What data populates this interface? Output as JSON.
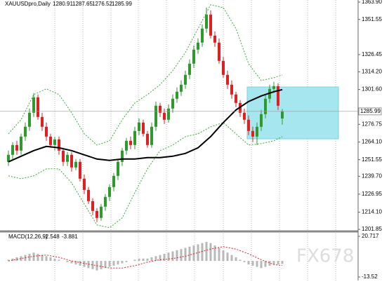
{
  "chart_data": {
    "type": "candlestick",
    "symbol": "XAUUSDpro,Daily",
    "watermark": "FX678",
    "up_color": "#2e9a2e",
    "down_color": "#e02020",
    "ylim": [
      1200.4,
      1365.4
    ],
    "yticks": [
      {
        "value": 1363.9,
        "label": "1363.90"
      },
      1351.55,
      1326.45,
      {
        "value": 1314.2,
        "label": "1314.20"
      },
      {
        "value": 1301.6,
        "label": "1301.60"
      },
      1276.75,
      {
        "value": 1264.1,
        "label": "1264.10"
      },
      1251.55,
      {
        "value": 1239.7,
        "label": "1239.70"
      },
      1226.95,
      {
        "value": 1214.1,
        "label": "1214.10"
      },
      1201.85
    ],
    "candles": {
      "open": [
        1250,
        1255,
        1262,
        1258,
        1268,
        1275,
        1285,
        1296,
        1282,
        1275,
        1268,
        1262,
        1266,
        1258,
        1250,
        1255,
        1246,
        1250,
        1238,
        1230,
        1222,
        1215,
        1210,
        1218,
        1225,
        1232,
        1240,
        1250,
        1258,
        1265,
        1262,
        1272,
        1278,
        1270,
        1262,
        1275,
        1290,
        1285,
        1280,
        1288,
        1295,
        1300,
        1305,
        1312,
        1320,
        1330,
        1335,
        1345,
        1355,
        1340,
        1335,
        1322,
        1312,
        1305,
        1298,
        1292,
        1285,
        1280,
        1272,
        1268,
        1275,
        1284,
        1295,
        1302,
        1304,
        1280.91
      ],
      "high": [
        1258,
        1264,
        1265,
        1270,
        1278,
        1288,
        1299,
        1298,
        1285,
        1278,
        1270,
        1268,
        1268,
        1260,
        1257,
        1257,
        1252,
        1252,
        1241,
        1232,
        1224,
        1217,
        1220,
        1227,
        1234,
        1242,
        1252,
        1260,
        1267,
        1268,
        1275,
        1281,
        1280,
        1272,
        1278,
        1293,
        1292,
        1288,
        1291,
        1298,
        1303,
        1308,
        1315,
        1323,
        1333,
        1338,
        1348,
        1360,
        1358,
        1343,
        1338,
        1325,
        1315,
        1308,
        1300,
        1294,
        1288,
        1283,
        1275,
        1278,
        1287,
        1298,
        1305,
        1307,
        1306,
        1287.65
      ],
      "low": [
        1247,
        1252,
        1255,
        1255,
        1265,
        1272,
        1282,
        1280,
        1272,
        1265,
        1260,
        1258,
        1255,
        1247,
        1247,
        1243,
        1244,
        1236,
        1227,
        1220,
        1212,
        1207,
        1208,
        1215,
        1222,
        1229,
        1237,
        1247,
        1255,
        1259,
        1259,
        1269,
        1268,
        1260,
        1260,
        1272,
        1282,
        1277,
        1278,
        1285,
        1292,
        1297,
        1302,
        1309,
        1317,
        1327,
        1332,
        1342,
        1338,
        1332,
        1320,
        1310,
        1302,
        1295,
        1289,
        1282,
        1277,
        1269,
        1264,
        1262,
        1272,
        1281,
        1292,
        1299,
        1287,
        1276.52
      ],
      "close": [
        1255,
        1262,
        1258,
        1268,
        1275,
        1285,
        1296,
        1282,
        1275,
        1268,
        1262,
        1266,
        1258,
        1250,
        1255,
        1246,
        1250,
        1238,
        1230,
        1222,
        1215,
        1210,
        1218,
        1225,
        1232,
        1240,
        1250,
        1258,
        1265,
        1262,
        1272,
        1278,
        1270,
        1262,
        1275,
        1290,
        1285,
        1280,
        1288,
        1295,
        1300,
        1305,
        1312,
        1320,
        1330,
        1335,
        1345,
        1355,
        1340,
        1335,
        1322,
        1312,
        1305,
        1298,
        1292,
        1285,
        1280,
        1272,
        1268,
        1275,
        1284,
        1295,
        1302,
        1304,
        1290,
        1285.99
      ]
    },
    "overlays": {
      "x": [
        0,
        3,
        6,
        9,
        12,
        15,
        18,
        21,
        24,
        27,
        30,
        33,
        36,
        39,
        42,
        45,
        48,
        51,
        54,
        57,
        60,
        63,
        65
      ],
      "ma": [
        1250,
        1254,
        1258,
        1261,
        1260,
        1258,
        1255,
        1252,
        1251,
        1252,
        1252,
        1253,
        1253,
        1254,
        1256,
        1260,
        1268,
        1278,
        1287,
        1293,
        1297,
        1300,
        1301.5
      ],
      "upper": [
        1270,
        1280,
        1298,
        1302,
        1298,
        1285,
        1270,
        1262,
        1265,
        1280,
        1292,
        1298,
        1305,
        1315,
        1328,
        1345,
        1362,
        1360,
        1345,
        1320,
        1308,
        1310,
        1312
      ],
      "lower": [
        1240,
        1238,
        1240,
        1245,
        1245,
        1235,
        1220,
        1205,
        1203,
        1210,
        1228,
        1245,
        1258,
        1262,
        1268,
        1270,
        1275,
        1278,
        1270,
        1262,
        1263,
        1265,
        1268
      ],
      "ma_color": "#000000",
      "band_color": "#3aaa3a"
    },
    "macd": {
      "label": "MACD(12,26,9)",
      "ylim": [
        -15.88,
        23.67
      ],
      "yticks": [
        20.717,
        -13.52
      ],
      "histogram": [
        1,
        2,
        3,
        4,
        5,
        6,
        7,
        6,
        5,
        4,
        3,
        2,
        1,
        0,
        -1,
        -2,
        -3,
        -4,
        -5,
        -6,
        -7,
        -8,
        -7,
        -6,
        -5,
        -4,
        -3,
        -2,
        -1,
        0,
        1,
        2,
        2,
        2,
        3,
        4,
        5,
        6,
        7,
        8,
        9,
        10,
        11,
        12,
        13,
        14,
        15,
        16,
        15,
        13,
        11,
        9,
        7,
        5,
        3,
        1,
        -1,
        -3,
        -4,
        -5,
        -6,
        -5,
        -4,
        -3,
        -3,
        -2.548
      ],
      "signal": [
        0,
        2,
        4,
        5,
        3,
        0,
        -2,
        -4,
        -6,
        -6,
        -4,
        -1,
        1,
        2,
        4,
        7,
        10,
        12,
        10,
        6,
        1,
        -3,
        -3.881
      ],
      "hist_color": "#b8b8b8",
      "signal_color": "#e02020"
    }
  }
}
